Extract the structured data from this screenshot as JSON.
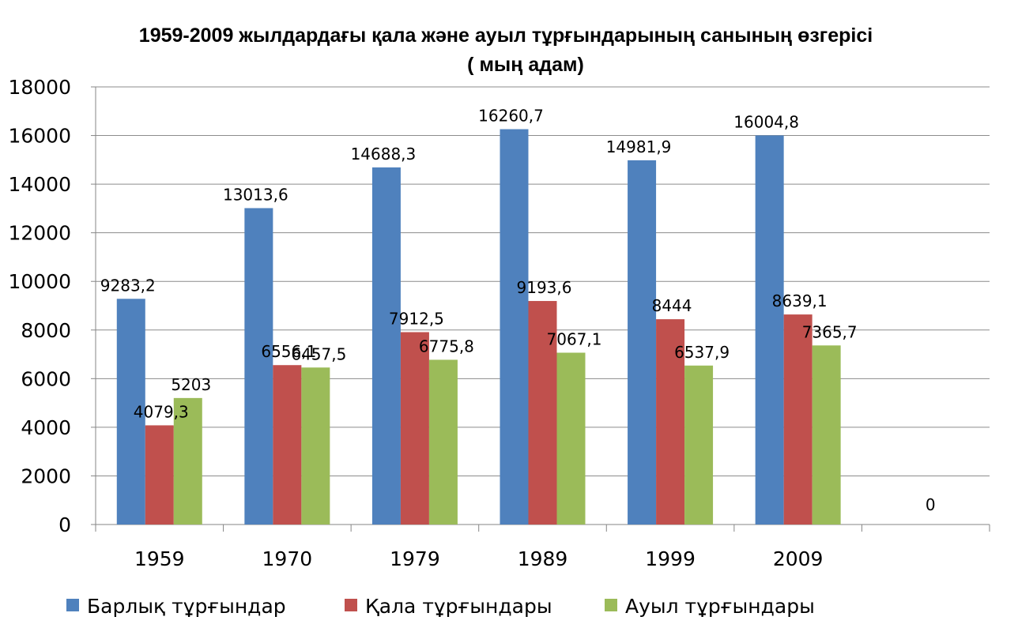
{
  "chart_data": {
    "type": "bar",
    "title": "1959-2009 жылдардағы қала және ауыл тұрғындарының санының өзгерісі",
    "subtitle": "( мың адам)",
    "xlabel": "",
    "ylabel": "",
    "ylim": [
      0,
      18000
    ],
    "y_ticks": [
      "0",
      "2000",
      "4000",
      "6000",
      "8000",
      "10000",
      "12000",
      "14000",
      "16000",
      "18000"
    ],
    "grid": true,
    "legend_position": "bottom",
    "categories": [
      "1959",
      "1970",
      "1979",
      "1989",
      "1999",
      "2009",
      ""
    ],
    "series": [
      {
        "name": "Барлық тұрғындар",
        "color": "#4F81BD",
        "values": [
          9283.2,
          13013.6,
          14688.3,
          16260.7,
          14981.9,
          16004.8,
          0
        ],
        "labels": [
          "9283,2",
          "13013,6",
          "14688,3",
          "16260,7",
          "14981,9",
          "16004,8",
          "0"
        ]
      },
      {
        "name": "Қала тұрғындары",
        "color": "#C0504D",
        "values": [
          4079.3,
          6556.1,
          7912.5,
          9193.6,
          8444,
          8639.1,
          null
        ],
        "labels": [
          "4079,3",
          "6556,1",
          "7912,5",
          "9193,6",
          "8444",
          "8639,1",
          ""
        ]
      },
      {
        "name": "Ауыл тұрғындары",
        "color": "#9BBB59",
        "values": [
          5203,
          6457.5,
          6775.8,
          7067.1,
          6537.9,
          7365.7,
          null
        ],
        "labels": [
          "5203",
          "6457,5",
          "6775,8",
          "7067,1",
          "6537,9",
          "7365,7",
          ""
        ]
      }
    ]
  }
}
